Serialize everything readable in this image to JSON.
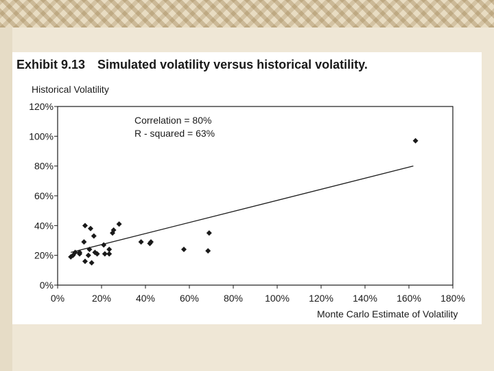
{
  "chart_data": {
    "type": "scatter",
    "title_number": "Exhibit 9.13",
    "title": "Simulated volatility versus historical volatility.",
    "ylabel": "Historical Volatility",
    "xlabel": "Monte Carlo Estimate of Volatility",
    "xlim": [
      0,
      180
    ],
    "ylim": [
      0,
      120
    ],
    "x_ticks": [
      0,
      20,
      40,
      60,
      80,
      100,
      120,
      140,
      160,
      180
    ],
    "x_tick_labels": [
      "0%",
      "20%",
      "40%",
      "60%",
      "80%",
      "100%",
      "120%",
      "140%",
      "160%",
      "180%"
    ],
    "y_ticks": [
      0,
      20,
      40,
      60,
      80,
      100,
      120
    ],
    "y_tick_labels": [
      "0%",
      "20%",
      "40%",
      "60%",
      "80%",
      "100%",
      "120%"
    ],
    "annotations": [
      "Correlation = 80%",
      "R - squared = 63%"
    ],
    "grid": false,
    "points": [
      {
        "x": 6,
        "y": 19
      },
      {
        "x": 7,
        "y": 20
      },
      {
        "x": 8,
        "y": 22
      },
      {
        "x": 10,
        "y": 22
      },
      {
        "x": 10,
        "y": 21
      },
      {
        "x": 12,
        "y": 29
      },
      {
        "x": 12.5,
        "y": 40
      },
      {
        "x": 12.5,
        "y": 16
      },
      {
        "x": 14,
        "y": 20
      },
      {
        "x": 14.5,
        "y": 24
      },
      {
        "x": 15,
        "y": 38
      },
      {
        "x": 15.5,
        "y": 15
      },
      {
        "x": 16.5,
        "y": 33
      },
      {
        "x": 17,
        "y": 22
      },
      {
        "x": 18,
        "y": 21
      },
      {
        "x": 21,
        "y": 27
      },
      {
        "x": 21.5,
        "y": 21
      },
      {
        "x": 23.5,
        "y": 24
      },
      {
        "x": 23.5,
        "y": 21
      },
      {
        "x": 25,
        "y": 35
      },
      {
        "x": 25.5,
        "y": 37
      },
      {
        "x": 28,
        "y": 41
      },
      {
        "x": 38,
        "y": 29
      },
      {
        "x": 42,
        "y": 28
      },
      {
        "x": 42.5,
        "y": 29
      },
      {
        "x": 57.5,
        "y": 24
      },
      {
        "x": 68.5,
        "y": 23
      },
      {
        "x": 69,
        "y": 35
      },
      {
        "x": 163,
        "y": 97
      }
    ],
    "trendline": {
      "x": [
        6,
        162
      ],
      "y": [
        22,
        80
      ]
    }
  }
}
